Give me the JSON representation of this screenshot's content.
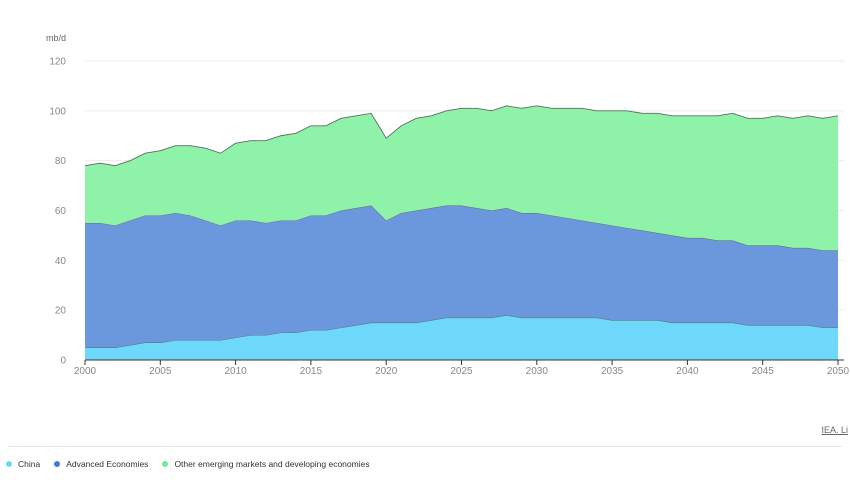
{
  "credit_text": "IEA. Li",
  "chart_data": {
    "type": "area",
    "stacked": true,
    "ylabel": "mb/d",
    "ylim": [
      0,
      120
    ],
    "yticks": [
      0,
      20,
      40,
      60,
      80,
      100,
      120
    ],
    "xlim": [
      2000,
      2050
    ],
    "xticks": [
      2000,
      2005,
      2010,
      2015,
      2020,
      2025,
      2030,
      2035,
      2040,
      2045,
      2050
    ],
    "grid": true,
    "legend_placement": "bottom-left",
    "x": [
      2000,
      2001,
      2002,
      2003,
      2004,
      2005,
      2006,
      2007,
      2008,
      2009,
      2010,
      2011,
      2012,
      2013,
      2014,
      2015,
      2016,
      2017,
      2018,
      2019,
      2020,
      2021,
      2022,
      2023,
      2024,
      2025,
      2026,
      2027,
      2028,
      2029,
      2030,
      2031,
      2032,
      2033,
      2034,
      2035,
      2036,
      2037,
      2038,
      2039,
      2040,
      2041,
      2042,
      2043,
      2044,
      2045,
      2046,
      2047,
      2048,
      2049,
      2050
    ],
    "series": [
      {
        "name": "China",
        "color": "#6ed8fa",
        "values": [
          5,
          5,
          5,
          6,
          7,
          7,
          8,
          8,
          8,
          8,
          9,
          10,
          10,
          11,
          11,
          12,
          12,
          13,
          14,
          15,
          15,
          15,
          15,
          16,
          17,
          17,
          17,
          17,
          18,
          17,
          17,
          17,
          17,
          17,
          17,
          16,
          16,
          16,
          16,
          15,
          15,
          15,
          15,
          15,
          14,
          14,
          14,
          14,
          14,
          13,
          13
        ]
      },
      {
        "name": "Advanced Economies",
        "color": "#6b97dc",
        "values": [
          50,
          50,
          49,
          50,
          51,
          51,
          51,
          50,
          48,
          46,
          47,
          46,
          45,
          45,
          45,
          46,
          46,
          47,
          47,
          47,
          41,
          44,
          45,
          45,
          45,
          45,
          44,
          43,
          43,
          42,
          42,
          41,
          40,
          39,
          38,
          38,
          37,
          36,
          35,
          35,
          34,
          34,
          33,
          33,
          32,
          32,
          32,
          31,
          31,
          31,
          31
        ]
      },
      {
        "name": "Other emerging markets and developing economies",
        "color": "#8ff2a9",
        "values": [
          23,
          24,
          24,
          24,
          25,
          26,
          27,
          28,
          29,
          29,
          31,
          32,
          33,
          34,
          35,
          36,
          36,
          37,
          37,
          37,
          33,
          35,
          37,
          37,
          38,
          39,
          40,
          40,
          41,
          42,
          43,
          43,
          44,
          45,
          45,
          46,
          47,
          47,
          48,
          48,
          49,
          49,
          50,
          51,
          51,
          51,
          52,
          52,
          53,
          53,
          54
        ]
      }
    ]
  }
}
